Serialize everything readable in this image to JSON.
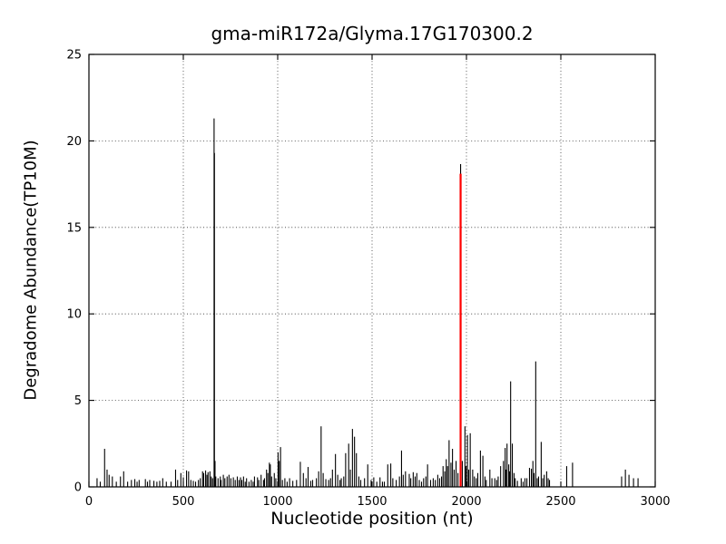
{
  "figure": {
    "background": "#ffffff",
    "axes_color": "#000000"
  },
  "chart_data": {
    "type": "stem",
    "title": "gma-miR172a/Glyma.17G170300.2",
    "xlabel": "Nucleotide position (nt)",
    "ylabel": "Degradome Abundance(TP10M)",
    "xlim": [
      0,
      3000
    ],
    "ylim": [
      0,
      25
    ],
    "xticks": [
      0,
      500,
      1000,
      1500,
      2000,
      2500,
      3000
    ],
    "yticks": [
      0,
      5,
      10,
      15,
      20,
      25
    ],
    "grid": true,
    "grid_style": "dotted",
    "legend": "none",
    "stem_color": "#000000",
    "highlight": {
      "x": 1969,
      "value": 18.1,
      "black_cap_value": 18.66,
      "color": "#ff0000"
    },
    "points": [
      [
        43,
        0.5
      ],
      [
        60,
        0.3
      ],
      [
        83,
        2.2
      ],
      [
        96,
        1.0
      ],
      [
        107,
        0.7
      ],
      [
        124,
        0.6
      ],
      [
        145,
        0.3
      ],
      [
        167,
        0.6
      ],
      [
        184,
        0.9
      ],
      [
        205,
        0.3
      ],
      [
        225,
        0.4
      ],
      [
        243,
        0.45
      ],
      [
        255,
        0.3
      ],
      [
        266,
        0.4
      ],
      [
        299,
        0.45
      ],
      [
        310,
        0.3
      ],
      [
        322,
        0.4
      ],
      [
        344,
        0.35
      ],
      [
        360,
        0.3
      ],
      [
        375,
        0.35
      ],
      [
        391,
        0.5
      ],
      [
        410,
        0.3
      ],
      [
        435,
        0.3
      ],
      [
        459,
        1.0
      ],
      [
        470,
        0.4
      ],
      [
        487,
        0.8
      ],
      [
        500,
        0.55
      ],
      [
        517,
        0.95
      ],
      [
        528,
        0.9
      ],
      [
        540,
        0.4
      ],
      [
        553,
        0.35
      ],
      [
        565,
        0.3
      ],
      [
        580,
        0.4
      ],
      [
        590,
        0.5
      ],
      [
        602,
        0.9
      ],
      [
        608,
        0.8
      ],
      [
        618,
        0.95
      ],
      [
        625,
        0.7
      ],
      [
        631,
        0.85
      ],
      [
        641,
        0.9
      ],
      [
        648,
        0.6
      ],
      [
        655,
        0.5
      ],
      [
        663,
        21.3
      ],
      [
        665,
        19.3
      ],
      [
        668,
        1.5
      ],
      [
        672,
        0.6
      ],
      [
        684,
        0.5
      ],
      [
        696,
        0.6
      ],
      [
        700,
        0.4
      ],
      [
        712,
        0.7
      ],
      [
        720,
        0.5
      ],
      [
        732,
        0.6
      ],
      [
        742,
        0.7
      ],
      [
        752,
        0.5
      ],
      [
        765,
        0.55
      ],
      [
        775,
        0.4
      ],
      [
        786,
        0.6
      ],
      [
        795,
        0.4
      ],
      [
        803,
        0.55
      ],
      [
        810,
        0.4
      ],
      [
        819,
        0.6
      ],
      [
        828,
        0.3
      ],
      [
        835,
        0.5
      ],
      [
        848,
        0.3
      ],
      [
        860,
        0.4
      ],
      [
        870,
        0.3
      ],
      [
        877,
        0.6
      ],
      [
        893,
        0.55
      ],
      [
        900,
        0.4
      ],
      [
        912,
        0.7
      ],
      [
        925,
        0.4
      ],
      [
        930,
        0.5
      ],
      [
        941,
        1.0
      ],
      [
        948,
        0.8
      ],
      [
        956,
        1.4
      ],
      [
        961,
        1.3
      ],
      [
        968,
        0.6
      ],
      [
        982,
        0.8
      ],
      [
        990,
        0.5
      ],
      [
        1002,
        2.0
      ],
      [
        1008,
        1.5
      ],
      [
        1015,
        2.3
      ],
      [
        1025,
        0.4
      ],
      [
        1038,
        0.5
      ],
      [
        1050,
        0.3
      ],
      [
        1063,
        0.5
      ],
      [
        1080,
        0.35
      ],
      [
        1100,
        0.4
      ],
      [
        1120,
        1.45
      ],
      [
        1136,
        0.8
      ],
      [
        1150,
        0.5
      ],
      [
        1161,
        1.15
      ],
      [
        1175,
        0.35
      ],
      [
        1185,
        0.4
      ],
      [
        1205,
        0.5
      ],
      [
        1217,
        0.9
      ],
      [
        1230,
        3.5
      ],
      [
        1241,
        0.8
      ],
      [
        1255,
        0.45
      ],
      [
        1270,
        0.4
      ],
      [
        1280,
        0.5
      ],
      [
        1290,
        1.0
      ],
      [
        1306,
        1.9
      ],
      [
        1318,
        0.7
      ],
      [
        1330,
        0.4
      ],
      [
        1337,
        0.5
      ],
      [
        1350,
        0.6
      ],
      [
        1360,
        1.95
      ],
      [
        1376,
        2.5
      ],
      [
        1385,
        1.0
      ],
      [
        1396,
        3.35
      ],
      [
        1407,
        2.9
      ],
      [
        1417,
        1.95
      ],
      [
        1430,
        0.6
      ],
      [
        1440,
        0.4
      ],
      [
        1460,
        0.5
      ],
      [
        1477,
        1.3
      ],
      [
        1495,
        0.4
      ],
      [
        1509,
        0.55
      ],
      [
        1525,
        0.3
      ],
      [
        1542,
        0.55
      ],
      [
        1555,
        0.3
      ],
      [
        1565,
        0.3
      ],
      [
        1583,
        1.3
      ],
      [
        1599,
        1.35
      ],
      [
        1610,
        0.5
      ],
      [
        1628,
        0.4
      ],
      [
        1645,
        0.6
      ],
      [
        1656,
        2.1
      ],
      [
        1665,
        0.7
      ],
      [
        1677,
        0.9
      ],
      [
        1697,
        0.75
      ],
      [
        1705,
        0.5
      ],
      [
        1718,
        0.85
      ],
      [
        1728,
        0.6
      ],
      [
        1737,
        0.8
      ],
      [
        1750,
        0.4
      ],
      [
        1762,
        0.3
      ],
      [
        1773,
        0.5
      ],
      [
        1785,
        0.6
      ],
      [
        1794,
        1.3
      ],
      [
        1810,
        0.4
      ],
      [
        1824,
        0.5
      ],
      [
        1835,
        0.4
      ],
      [
        1848,
        0.7
      ],
      [
        1858,
        0.5
      ],
      [
        1868,
        0.6
      ],
      [
        1876,
        1.2
      ],
      [
        1885,
        0.9
      ],
      [
        1893,
        1.6
      ],
      [
        1900,
        1.2
      ],
      [
        1908,
        2.7
      ],
      [
        1918,
        1.4
      ],
      [
        1926,
        2.2
      ],
      [
        1935,
        1.0
      ],
      [
        1945,
        1.5
      ],
      [
        1955,
        0.8
      ],
      [
        1969,
        18.66
      ],
      [
        1978,
        1.5
      ],
      [
        1992,
        3.5
      ],
      [
        1998,
        1.2
      ],
      [
        2005,
        3.0
      ],
      [
        2012,
        1.0
      ],
      [
        2020,
        3.1
      ],
      [
        2033,
        1.0
      ],
      [
        2042,
        0.6
      ],
      [
        2052,
        0.5
      ],
      [
        2060,
        0.8
      ],
      [
        2074,
        2.1
      ],
      [
        2087,
        1.8
      ],
      [
        2098,
        0.6
      ],
      [
        2105,
        0.4
      ],
      [
        2124,
        1.0
      ],
      [
        2135,
        0.5
      ],
      [
        2150,
        0.5
      ],
      [
        2160,
        0.4
      ],
      [
        2168,
        0.6
      ],
      [
        2181,
        1.2
      ],
      [
        2196,
        1.5
      ],
      [
        2205,
        2.25
      ],
      [
        2210,
        1.0
      ],
      [
        2215,
        2.5
      ],
      [
        2224,
        1.3
      ],
      [
        2228,
        0.9
      ],
      [
        2234,
        6.1
      ],
      [
        2243,
        2.5
      ],
      [
        2252,
        0.8
      ],
      [
        2258,
        0.5
      ],
      [
        2270,
        0.35
      ],
      [
        2290,
        0.5
      ],
      [
        2300,
        0.3
      ],
      [
        2310,
        0.5
      ],
      [
        2320,
        0.5
      ],
      [
        2334,
        1.1
      ],
      [
        2344,
        1.05
      ],
      [
        2352,
        1.5
      ],
      [
        2358,
        0.8
      ],
      [
        2367,
        7.25
      ],
      [
        2375,
        0.5
      ],
      [
        2382,
        0.6
      ],
      [
        2396,
        2.6
      ],
      [
        2404,
        0.5
      ],
      [
        2412,
        0.7
      ],
      [
        2425,
        0.9
      ],
      [
        2433,
        0.5
      ],
      [
        2440,
        0.4
      ],
      [
        2531,
        1.2
      ],
      [
        2562,
        1.4
      ],
      [
        2822,
        0.6
      ],
      [
        2842,
        1.0
      ],
      [
        2861,
        0.7
      ],
      [
        2885,
        0.5
      ],
      [
        2909,
        0.5
      ]
    ]
  }
}
